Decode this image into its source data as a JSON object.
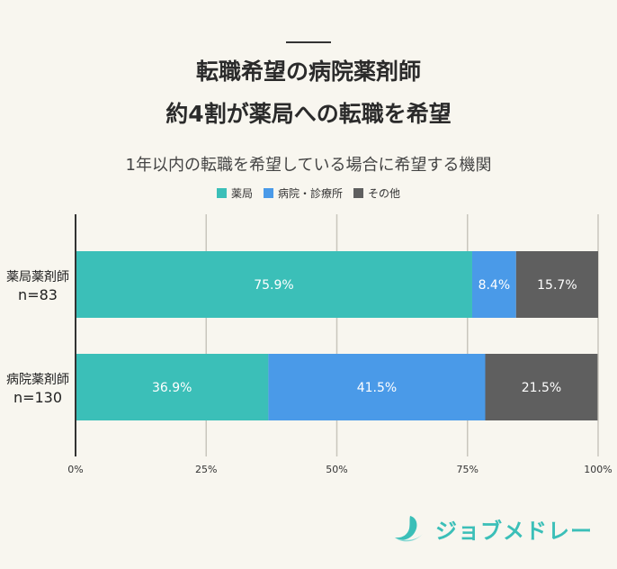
{
  "header": {
    "title_line1": "転職希望の病院薬剤師",
    "title_line2": "約4割が薬局への転職を希望"
  },
  "chart_data": {
    "type": "bar",
    "orientation": "horizontal",
    "stacked": true,
    "subtitle": "1年以内の転職を希望している場合に希望する機関",
    "categories": [
      {
        "label_line1": "薬局薬剤師",
        "label_line2": "n=83"
      },
      {
        "label_line1": "病院薬剤師",
        "label_line2": "n=130"
      }
    ],
    "series": [
      {
        "name": "薬局",
        "color": "#3bbfb8",
        "values": [
          75.9,
          36.9
        ],
        "labels": [
          "75.9%",
          "36.9%"
        ]
      },
      {
        "name": "病院・診療所",
        "color": "#4a9ae8",
        "values": [
          8.4,
          41.5
        ],
        "labels": [
          "8.4%",
          "41.5%"
        ]
      },
      {
        "name": "その他",
        "color": "#5f5f5f",
        "values": [
          15.7,
          21.5
        ],
        "labels": [
          "15.7%",
          "21.5%"
        ]
      }
    ],
    "xlim": [
      0,
      100
    ],
    "xticks": [
      0,
      25,
      50,
      75,
      100
    ],
    "xtick_labels": [
      "0%",
      "25%",
      "50%",
      "75%",
      "100%"
    ],
    "grid": true,
    "legend_position": "top-center"
  },
  "brand": {
    "logo_text": "ジョブメドレー",
    "color": "#3bbfb8"
  }
}
